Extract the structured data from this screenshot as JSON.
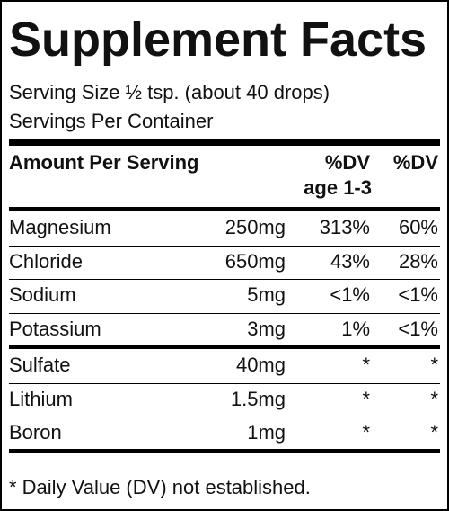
{
  "title": "Supplement Facts",
  "serving_size": "Serving Size ½ tsp. (about 40 drops)",
  "servings_per_container": "Servings Per Container",
  "header": {
    "amount": "Amount Per Serving",
    "dv_child": [
      "%DV",
      "age 1-3"
    ],
    "dv_adult": "%DV"
  },
  "groups": [
    [
      [
        "Magnesium",
        "250mg",
        "313%",
        "60%"
      ],
      [
        "Chloride",
        "650mg",
        "43%",
        "28%"
      ],
      [
        "Sodium",
        "5mg",
        "<1%",
        "<1%"
      ],
      [
        "Potassium",
        "3mg",
        "1%",
        "<1%"
      ]
    ],
    [
      [
        "Sulfate",
        "40mg",
        "*",
        "*"
      ],
      [
        "Lithium",
        "1.5mg",
        "*",
        "*"
      ],
      [
        "Boron",
        "1mg",
        "*",
        "*"
      ]
    ]
  ],
  "footnote": "* Daily Value (DV) not established."
}
